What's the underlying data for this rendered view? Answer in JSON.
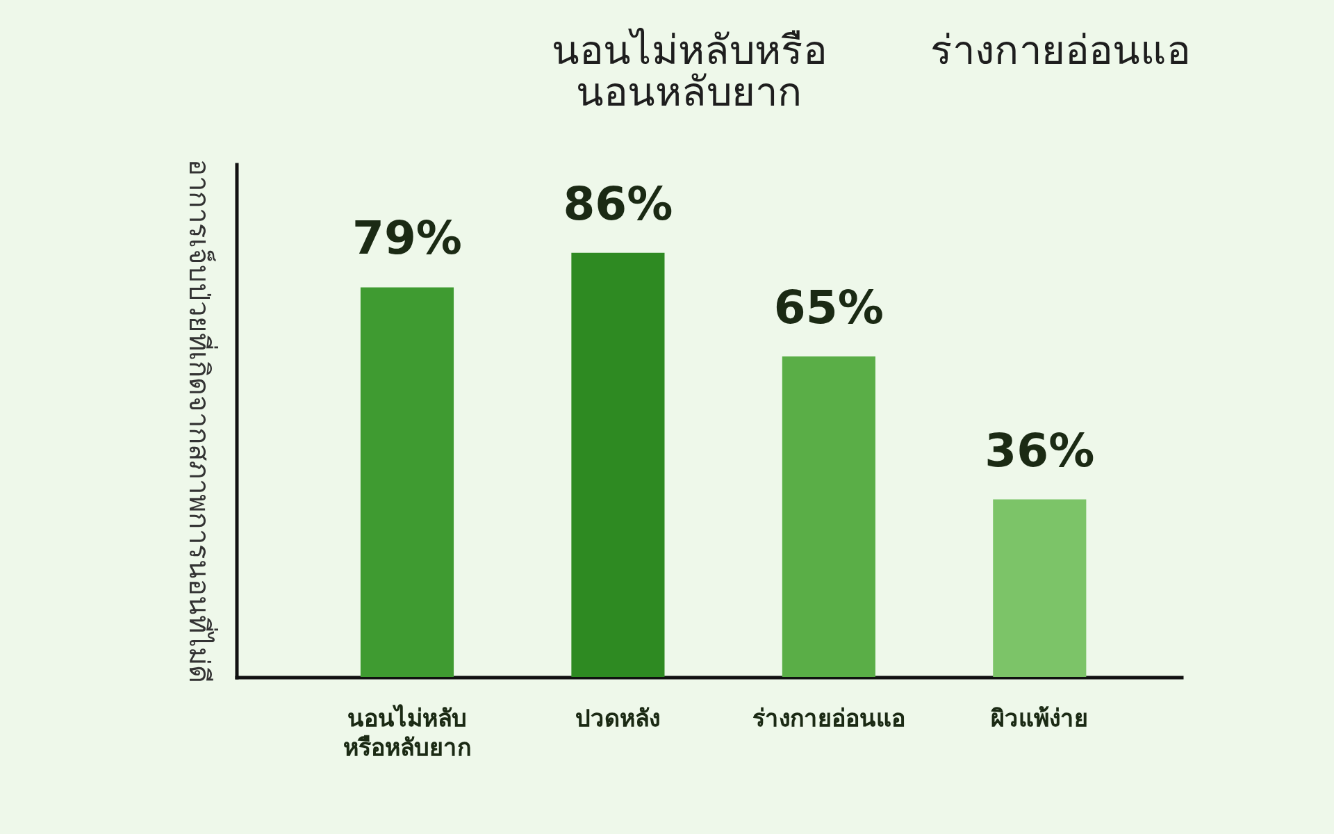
{
  "chart_data": {
    "type": "bar",
    "annotations": [
      "นอนไม่หลับหรือ\nนอนหลับยาก",
      "ร่างกายอ่อนแอ"
    ],
    "ylabel": "อาการเจ็บป่วยที่เกิดจากสภาพการนอนที่ไม่ดี",
    "categories": [
      "นอนไม่หลับ\nหรือหลับยาก",
      "ปวดหลัง",
      "ร่างกายอ่อนแอ",
      "ผิวแพ้ง่าย"
    ],
    "values": [
      79,
      86,
      65,
      36
    ],
    "value_labels": [
      "79%",
      "86%",
      "65%",
      "36%"
    ],
    "colors": [
      "#3f9b31",
      "#2e8a22",
      "#5aae47",
      "#7cc468"
    ],
    "ylim": [
      0,
      104
    ],
    "tick_labels": "x"
  }
}
